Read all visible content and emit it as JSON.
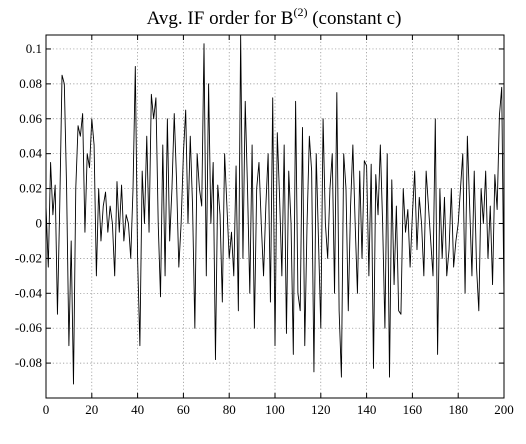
{
  "chart_data": {
    "type": "line",
    "title": {
      "prefix": "Avg. IF order for B",
      "superscript": "(2)",
      "suffix": " (constant c)"
    },
    "xlabel": "",
    "ylabel": "",
    "xlim": [
      0,
      200
    ],
    "ylim": [
      -0.1,
      0.108
    ],
    "grid": true,
    "x_ticks": [
      0,
      20,
      40,
      60,
      80,
      100,
      120,
      140,
      160,
      180,
      200
    ],
    "x_tick_labels": [
      "0",
      "20",
      "40",
      "60",
      "80",
      "100",
      "120",
      "140",
      "160",
      "180",
      "200"
    ],
    "y_ticks": [
      -0.08,
      -0.06,
      -0.04,
      -0.02,
      0,
      0.02,
      0.04,
      0.06,
      0.08,
      0.1
    ],
    "y_tick_labels": [
      "-0.08",
      "-0.06",
      "-0.04",
      "-0.02",
      "0",
      "0.02",
      "0.04",
      "0.06",
      "0.08",
      "0.1"
    ],
    "series": [
      {
        "values": [
          0.01,
          -0.025,
          0.035,
          0.005,
          0.022,
          -0.052,
          0.01,
          0.085,
          0.08,
          0.02,
          -0.07,
          -0.01,
          -0.092,
          0.02,
          0.056,
          0.05,
          0.063,
          -0.005,
          0.04,
          0.032,
          0.06,
          0.045,
          -0.03,
          0.02,
          -0.01,
          0.01,
          0.018,
          -0.005,
          0.01,
          0.0,
          -0.03,
          0.024,
          -0.005,
          0.022,
          -0.01,
          0.005,
          0.0,
          -0.02,
          0.02,
          0.09,
          -0.02,
          -0.07,
          0.03,
          0.0,
          0.05,
          -0.005,
          0.074,
          0.06,
          0.072,
          0.0,
          -0.042,
          0.045,
          -0.03,
          0.06,
          -0.01,
          0.02,
          0.063,
          0.025,
          -0.025,
          0.0,
          0.04,
          0.065,
          0.0,
          0.05,
          0.01,
          -0.06,
          0.04,
          0.02,
          0.01,
          0.103,
          -0.03,
          0.08,
          0.0,
          0.035,
          -0.078,
          0.022,
          0.005,
          -0.045,
          0.04,
          0.01,
          -0.02,
          -0.005,
          -0.03,
          0.033,
          -0.05,
          0.108,
          -0.02,
          0.07,
          0.02,
          -0.04,
          0.045,
          -0.06,
          0.02,
          0.035,
          0.0,
          -0.03,
          0.01,
          0.04,
          -0.045,
          0.072,
          -0.07,
          0.052,
          0.015,
          -0.03,
          0.045,
          -0.063,
          0.03,
          0.0,
          -0.075,
          0.07,
          -0.04,
          -0.05,
          0.055,
          -0.07,
          0.0,
          0.05,
          0.03,
          -0.085,
          0.04,
          -0.01,
          -0.06,
          0.06,
          0.0,
          -0.02,
          0.02,
          0.04,
          -0.04,
          0.075,
          -0.05,
          -0.088,
          0.04,
          0.02,
          -0.05,
          0.01,
          0.045,
          0.0,
          -0.04,
          0.03,
          -0.02,
          0.036,
          0.033,
          -0.03,
          0.034,
          -0.083,
          0.028,
          0.005,
          0.045,
          0.0,
          -0.06,
          0.04,
          -0.088,
          0.025,
          -0.035,
          0.01,
          -0.05,
          -0.052,
          0.02,
          -0.005,
          0.008,
          -0.025,
          0.005,
          0.03,
          -0.015,
          0.015,
          0.0,
          -0.03,
          0.03,
          0.01,
          -0.01,
          -0.03,
          0.06,
          -0.075,
          0.02,
          -0.02,
          0.015,
          -0.03,
          -0.015,
          0.02,
          -0.025,
          -0.01,
          0.0,
          0.02,
          0.04,
          -0.04,
          0.05,
          0.01,
          -0.03,
          0.03,
          -0.025,
          -0.05,
          0.02,
          0.0,
          0.03,
          -0.02,
          0.01,
          -0.035,
          0.028,
          0.008,
          0.062,
          0.078,
          -0.045
        ]
      }
    ]
  }
}
